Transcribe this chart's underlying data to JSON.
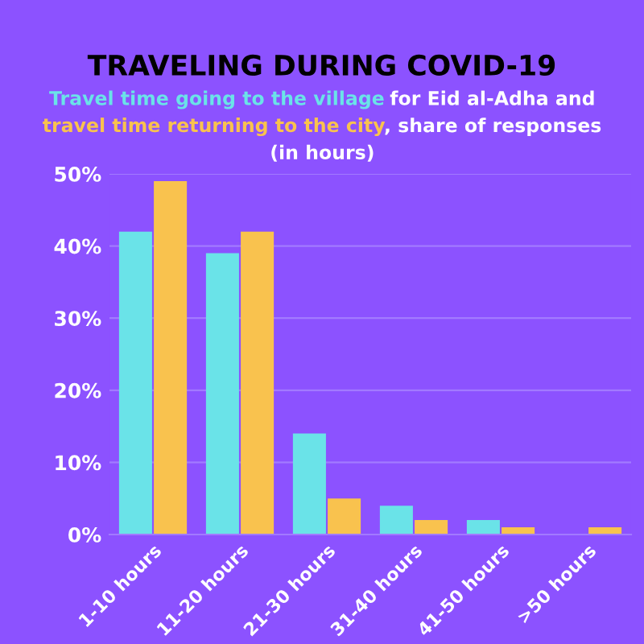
{
  "chart_data": {
    "type": "bar",
    "title": "TRAVELING DURING COVID-19",
    "annotations": [
      " for Eid al-Adha and",
      ", share of responses",
      "(in hours)"
    ],
    "categories": [
      "1-10 hours",
      "11-20 hours",
      "21-30 hours",
      "31-40 hours",
      "41-50 hours",
      ">50 hours"
    ],
    "series": [
      {
        "name": "Travel time going to the village",
        "color": "#6ae3e8",
        "values": [
          42,
          39,
          14,
          4,
          2,
          0
        ]
      },
      {
        "name": "travel time returning to the city",
        "color": "#f9c24e",
        "values": [
          49,
          42,
          5,
          2,
          1,
          1
        ]
      }
    ],
    "ylim": [
      0,
      50
    ],
    "yticks": [
      {
        "value": 0,
        "label": "0%"
      },
      {
        "value": 10,
        "label": "10%"
      },
      {
        "value": 20,
        "label": "20%"
      },
      {
        "value": 30,
        "label": "30%"
      },
      {
        "value": 40,
        "label": "40%"
      },
      {
        "value": 50,
        "label": "50%"
      }
    ],
    "grid": "y",
    "legend": false
  }
}
